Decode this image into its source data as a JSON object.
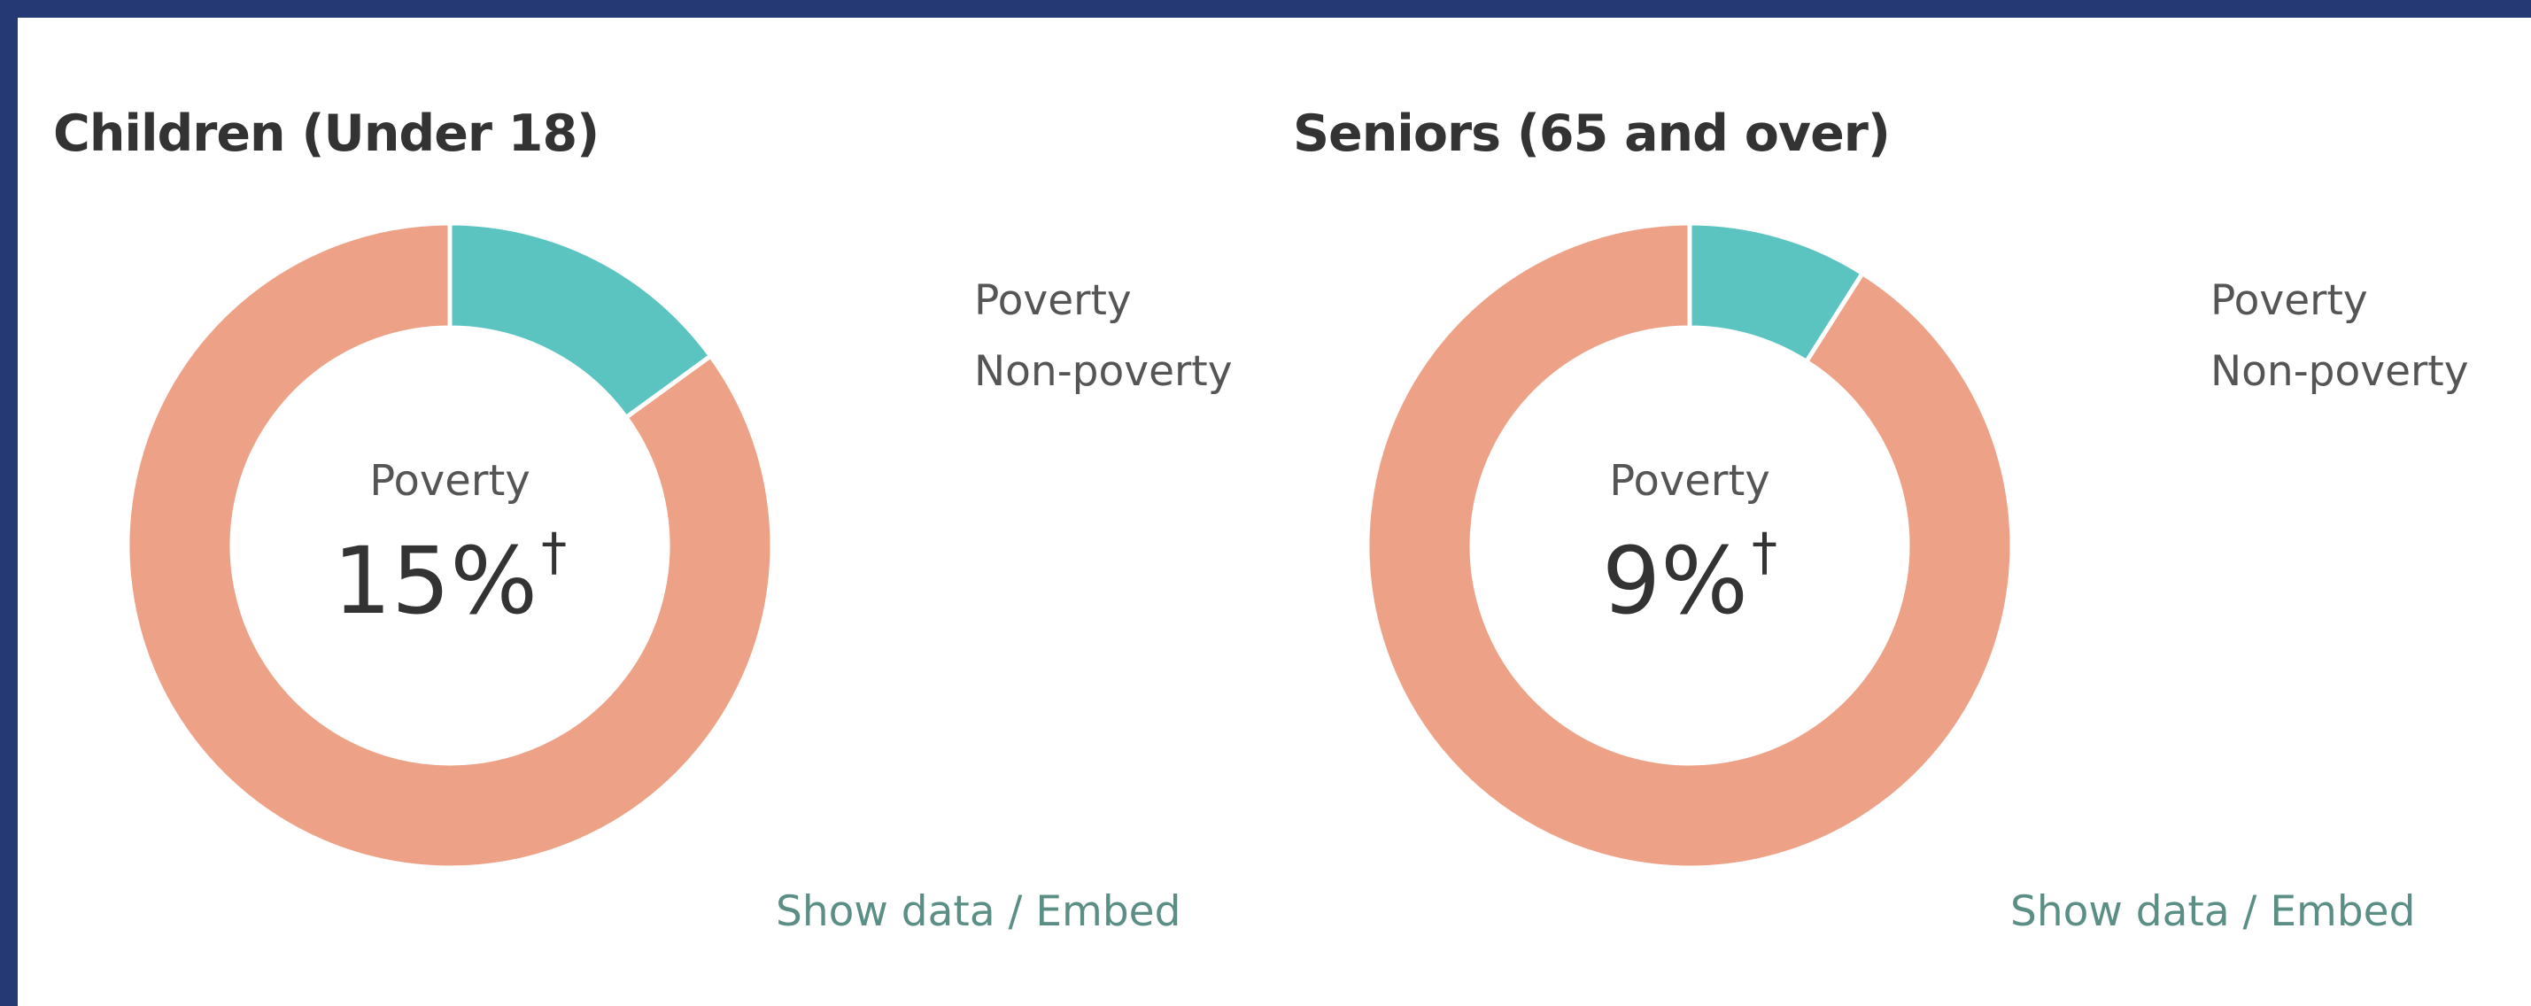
{
  "colors": {
    "poverty": "#5bc4c1",
    "non_poverty": "#eda287",
    "frame": "#253a74"
  },
  "chart_data": [
    {
      "type": "pie",
      "title": "Children (Under 18)",
      "categories": [
        "Poverty",
        "Non-poverty"
      ],
      "values": [
        15,
        85
      ],
      "center_label": "Poverty",
      "center_value": "15%",
      "center_mark": "†",
      "legend": [
        "Poverty",
        "Non-poverty"
      ],
      "legend_position": "right",
      "link_text": "Show data / Embed"
    },
    {
      "type": "pie",
      "title": "Seniors (65 and over)",
      "categories": [
        "Poverty",
        "Non-poverty"
      ],
      "values": [
        9,
        91
      ],
      "center_label": "Poverty",
      "center_value": "9%",
      "center_mark": "†",
      "legend": [
        "Poverty",
        "Non-poverty"
      ],
      "legend_position": "right",
      "link_text": "Show data / Embed"
    }
  ]
}
